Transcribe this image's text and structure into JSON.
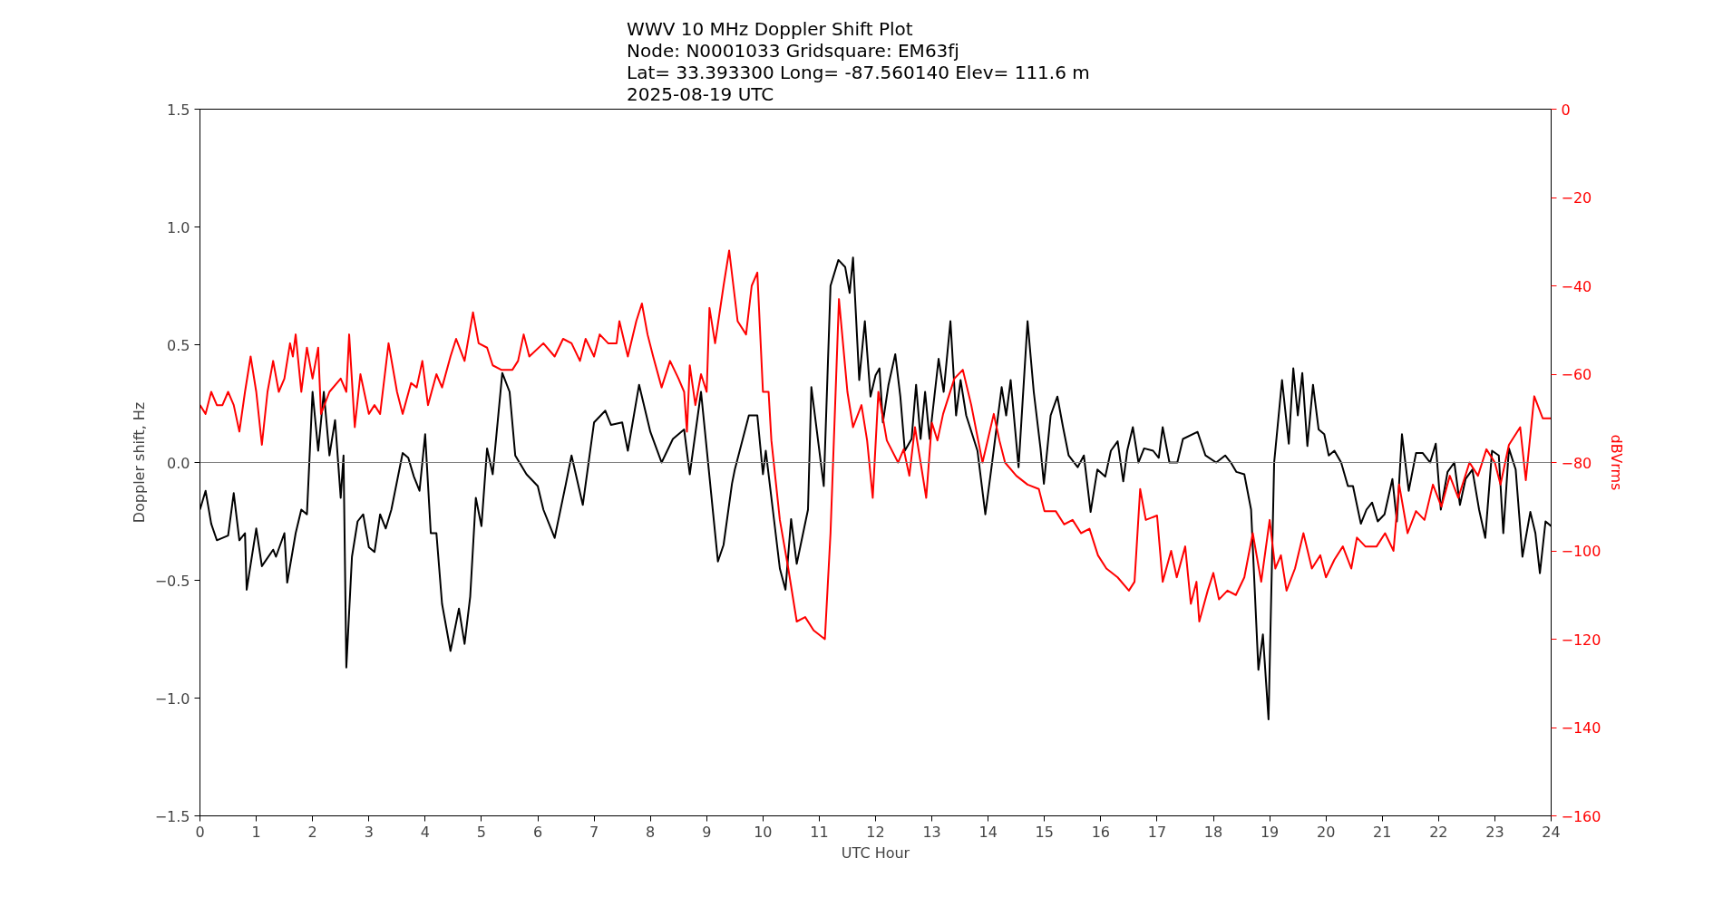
{
  "chart_data": {
    "type": "line",
    "title": "WWV 10 MHz Doppler Shift Plot\nNode:  N0001033     Gridsquare:  EM63fj\nLat= 33.393300    Long= -87.560140    Elev= 111.6 m\n2025-08-19  UTC",
    "xlabel": "UTC Hour",
    "ylabel": "Doppler shift, Hz",
    "y2label": "dBVrms",
    "xlim": [
      0,
      24
    ],
    "xticks": [
      0,
      1,
      2,
      3,
      4,
      5,
      6,
      7,
      8,
      9,
      10,
      11,
      12,
      13,
      14,
      15,
      16,
      17,
      18,
      19,
      20,
      21,
      22,
      23,
      24
    ],
    "ylim": [
      -1.5,
      1.5
    ],
    "yticks": [
      {
        "value": -1.5,
        "label": "−1.5"
      },
      {
        "value": -1.0,
        "label": "−1.0"
      },
      {
        "value": -0.5,
        "label": "−0.5"
      },
      {
        "value": 0,
        "label": "0.0"
      },
      {
        "value": 0.5,
        "label": "0.5"
      },
      {
        "value": 1.0,
        "label": "1.0"
      },
      {
        "value": 1.5,
        "label": "1.5"
      }
    ],
    "y2lim": [
      -160,
      0
    ],
    "y2ticks": [
      {
        "value": -160,
        "label": "−160"
      },
      {
        "value": -140,
        "label": "−140"
      },
      {
        "value": -120,
        "label": "−120"
      },
      {
        "value": -100,
        "label": "−100"
      },
      {
        "value": -80,
        "label": "−80"
      },
      {
        "value": -60,
        "label": "−60"
      },
      {
        "value": -40,
        "label": "−40"
      },
      {
        "value": -20,
        "label": "−20"
      },
      {
        "value": 0,
        "label": "0"
      }
    ],
    "grid": false,
    "line_style": "solid",
    "ref_lines": [
      {
        "axis": "y",
        "value": 0,
        "color": "#808080"
      }
    ],
    "series": [
      {
        "color": "#000000",
        "x": [
          0,
          0.1,
          0.2,
          0.3,
          0.5,
          0.6,
          0.7,
          0.8,
          0.83,
          1.0,
          1.1,
          1.3,
          1.35,
          1.5,
          1.55,
          1.7,
          1.8,
          1.9,
          2.0,
          2.1,
          2.2,
          2.3,
          2.4,
          2.5,
          2.55,
          2.6,
          2.7,
          2.8,
          2.9,
          3.0,
          3.1,
          3.2,
          3.3,
          3.4,
          3.6,
          3.7,
          3.8,
          3.9,
          4.0,
          4.1,
          4.2,
          4.3,
          4.45,
          4.6,
          4.7,
          4.8,
          4.9,
          5.0,
          5.1,
          5.2,
          5.37,
          5.5,
          5.6,
          5.8,
          6.0,
          6.1,
          6.3,
          6.5,
          6.6,
          6.8,
          7.0,
          7.2,
          7.3,
          7.5,
          7.6,
          7.8,
          8.0,
          8.2,
          8.4,
          8.6,
          8.7,
          8.9,
          9.0,
          9.2,
          9.3,
          9.45,
          9.5,
          9.75,
          9.9,
          10.0,
          10.05,
          10.3,
          10.4,
          10.5,
          10.6,
          10.8,
          10.86,
          11.08,
          11.2,
          11.34,
          11.46,
          11.54,
          11.6,
          11.71,
          11.81,
          11.91,
          12.0,
          12.07,
          12.13,
          12.23,
          12.35,
          12.44,
          12.52,
          12.64,
          12.72,
          12.8,
          12.88,
          12.96,
          13.12,
          13.21,
          13.33,
          13.43,
          13.51,
          13.61,
          13.81,
          13.95,
          14.06,
          14.24,
          14.32,
          14.4,
          14.54,
          14.7,
          14.81,
          14.93,
          14.99,
          15.11,
          15.23,
          15.33,
          15.43,
          15.59,
          15.7,
          15.82,
          15.94,
          16.08,
          16.18,
          16.3,
          16.4,
          16.47,
          16.57,
          16.67,
          16.77,
          16.93,
          17.03,
          17.1,
          17.22,
          17.36,
          17.46,
          17.72,
          17.86,
          18.05,
          18.21,
          18.31,
          18.41,
          18.55,
          18.67,
          18.8,
          18.88,
          18.98,
          19.08,
          19.22,
          19.34,
          19.42,
          19.5,
          19.58,
          19.67,
          19.77,
          19.87,
          19.97,
          20.05,
          20.15,
          20.27,
          20.39,
          20.48,
          20.62,
          20.72,
          20.82,
          20.92,
          21.04,
          21.18,
          21.26,
          21.35,
          21.47,
          21.6,
          21.72,
          21.85,
          21.95,
          22.04,
          22.16,
          22.28,
          22.38,
          22.48,
          22.6,
          22.72,
          22.83,
          22.95,
          23.07,
          23.15,
          23.25,
          23.37,
          23.49,
          23.63,
          23.72,
          23.8,
          23.9,
          24.0
        ],
        "values": [
          -0.2,
          -0.12,
          -0.26,
          -0.33,
          -0.31,
          -0.13,
          -0.33,
          -0.3,
          -0.54,
          -0.28,
          -0.44,
          -0.37,
          -0.4,
          -0.3,
          -0.51,
          -0.3,
          -0.2,
          -0.22,
          0.3,
          0.05,
          0.3,
          0.03,
          0.18,
          -0.15,
          0.03,
          -0.87,
          -0.4,
          -0.25,
          -0.22,
          -0.36,
          -0.38,
          -0.22,
          -0.28,
          -0.2,
          0.04,
          0.02,
          -0.06,
          -0.12,
          0.12,
          -0.3,
          -0.3,
          -0.6,
          -0.8,
          -0.62,
          -0.77,
          -0.57,
          -0.15,
          -0.27,
          0.06,
          -0.05,
          0.38,
          0.3,
          0.03,
          -0.05,
          -0.1,
          -0.2,
          -0.32,
          -0.09,
          0.03,
          -0.18,
          0.17,
          0.22,
          0.16,
          0.17,
          0.05,
          0.33,
          0.13,
          0.0,
          0.1,
          0.14,
          -0.05,
          0.3,
          0.06,
          -0.42,
          -0.35,
          -0.09,
          -0.03,
          0.2,
          0.2,
          -0.05,
          0.05,
          -0.45,
          -0.54,
          -0.24,
          -0.43,
          -0.2,
          0.32,
          -0.1,
          0.75,
          0.86,
          0.83,
          0.72,
          0.87,
          0.35,
          0.6,
          0.28,
          0.37,
          0.4,
          0.17,
          0.33,
          0.46,
          0.28,
          0.05,
          0.1,
          0.33,
          0.1,
          0.3,
          0.1,
          0.44,
          0.3,
          0.6,
          0.2,
          0.35,
          0.2,
          0.05,
          -0.22,
          -0.02,
          0.32,
          0.2,
          0.35,
          -0.02,
          0.6,
          0.3,
          0.06,
          -0.09,
          0.2,
          0.28,
          0.15,
          0.03,
          -0.02,
          0.03,
          -0.21,
          -0.03,
          -0.06,
          0.05,
          0.09,
          -0.08,
          0.05,
          0.15,
          0.0,
          0.06,
          0.05,
          0.02,
          0.15,
          0.0,
          0.0,
          0.1,
          0.13,
          0.03,
          0.0,
          0.03,
          0.0,
          -0.04,
          -0.05,
          -0.2,
          -0.88,
          -0.73,
          -1.09,
          0.0,
          0.35,
          0.08,
          0.4,
          0.2,
          0.38,
          0.07,
          0.33,
          0.14,
          0.12,
          0.03,
          0.05,
          0.0,
          -0.1,
          -0.1,
          -0.26,
          -0.2,
          -0.17,
          -0.25,
          -0.22,
          -0.07,
          -0.25,
          0.12,
          -0.12,
          0.04,
          0.04,
          0.0,
          0.08,
          -0.2,
          -0.04,
          0.0,
          -0.18,
          -0.07,
          -0.03,
          -0.2,
          -0.32,
          0.05,
          0.03,
          -0.3,
          0.06,
          -0.03,
          -0.4,
          -0.21,
          -0.3,
          -0.47,
          -0.25,
          -0.27
        ]
      },
      {
        "color": "#ff0000",
        "axis": "y2",
        "x": [
          0,
          0.1,
          0.2,
          0.3,
          0.4,
          0.5,
          0.6,
          0.7,
          0.8,
          0.9,
          1.0,
          1.1,
          1.2,
          1.3,
          1.4,
          1.5,
          1.6,
          1.65,
          1.7,
          1.8,
          1.9,
          2.0,
          2.1,
          2.15,
          2.3,
          2.5,
          2.6,
          2.65,
          2.75,
          2.85,
          3.0,
          3.1,
          3.2,
          3.35,
          3.5,
          3.6,
          3.75,
          3.85,
          3.95,
          4.05,
          4.2,
          4.3,
          4.45,
          4.55,
          4.7,
          4.85,
          4.95,
          5.1,
          5.2,
          5.35,
          5.55,
          5.65,
          5.75,
          5.85,
          6.1,
          6.3,
          6.45,
          6.6,
          6.75,
          6.85,
          7.0,
          7.1,
          7.25,
          7.4,
          7.45,
          7.6,
          7.75,
          7.85,
          7.95,
          8.05,
          8.2,
          8.35,
          8.5,
          8.6,
          8.65,
          8.7,
          8.8,
          8.9,
          9.0,
          9.05,
          9.15,
          9.3,
          9.4,
          9.55,
          9.7,
          9.8,
          9.9,
          10.0,
          10.1,
          10.15,
          10.3,
          10.45,
          10.6,
          10.75,
          10.9,
          11.1,
          11.2,
          11.35,
          11.5,
          11.6,
          11.75,
          11.85,
          11.95,
          12.05,
          12.2,
          12.4,
          12.5,
          12.6,
          12.7,
          12.9,
          13.0,
          13.1,
          13.2,
          13.4,
          13.55,
          13.7,
          13.9,
          14.1,
          14.2,
          14.3,
          14.5,
          14.7,
          14.9,
          15.0,
          15.2,
          15.35,
          15.5,
          15.65,
          15.8,
          15.95,
          16.1,
          16.3,
          16.5,
          16.6,
          16.7,
          16.8,
          17.0,
          17.1,
          17.25,
          17.35,
          17.5,
          17.6,
          17.7,
          17.75,
          17.9,
          18.0,
          18.1,
          18.25,
          18.4,
          18.55,
          18.7,
          18.85,
          19.0,
          19.1,
          19.2,
          19.3,
          19.45,
          19.6,
          19.75,
          19.9,
          20.0,
          20.15,
          20.3,
          20.45,
          20.55,
          20.7,
          20.9,
          21.05,
          21.2,
          21.3,
          21.45,
          21.6,
          21.75,
          21.9,
          22.05,
          22.2,
          22.35,
          22.55,
          22.7,
          22.85,
          23.0,
          23.1,
          23.25,
          23.45,
          23.55,
          23.7,
          23.85,
          24.0
        ],
        "values": [
          -67,
          -69,
          -64,
          -67,
          -67,
          -64,
          -67,
          -73,
          -64,
          -56,
          -64,
          -76,
          -64,
          -57,
          -64,
          -61,
          -53,
          -56,
          -51,
          -64,
          -54,
          -61,
          -54,
          -69,
          -64,
          -61,
          -64,
          -51,
          -72,
          -60,
          -69,
          -67,
          -69,
          -53,
          -64,
          -69,
          -62,
          -63,
          -57,
          -67,
          -60,
          -63,
          -56,
          -52,
          -57,
          -46,
          -53,
          -54,
          -58,
          -59,
          -59,
          -57,
          -51,
          -56,
          -53,
          -56,
          -52,
          -53,
          -57,
          -52,
          -56,
          -51,
          -53,
          -53,
          -48,
          -56,
          -48,
          -44,
          -51,
          -56,
          -63,
          -57,
          -61,
          -64,
          -73,
          -58,
          -67,
          -60,
          -64,
          -45,
          -53,
          -40,
          -32,
          -48,
          -51,
          -40,
          -37,
          -64,
          -64,
          -75,
          -93,
          -104,
          -116,
          -115,
          -118,
          -120,
          -96,
          -43,
          -64,
          -72,
          -67,
          -75,
          -88,
          -64,
          -75,
          -80,
          -77,
          -83,
          -72,
          -88,
          -71,
          -75,
          -69,
          -61,
          -59,
          -67,
          -80,
          -69,
          -75,
          -80,
          -83,
          -85,
          -86,
          -91,
          -91,
          -94,
          -93,
          -96,
          -95,
          -101,
          -104,
          -106,
          -109,
          -107,
          -86,
          -93,
          -92,
          -107,
          -100,
          -106,
          -99,
          -112,
          -107,
          -116,
          -109,
          -105,
          -111,
          -109,
          -110,
          -106,
          -96,
          -107,
          -93,
          -104,
          -101,
          -109,
          -104,
          -96,
          -104,
          -101,
          -106,
          -102,
          -99,
          -104,
          -97,
          -99,
          -99,
          -96,
          -100,
          -85,
          -96,
          -91,
          -93,
          -85,
          -90,
          -83,
          -88,
          -80,
          -83,
          -77,
          -80,
          -85,
          -76,
          -72,
          -84,
          -65,
          -70,
          -70
        ]
      }
    ]
  }
}
